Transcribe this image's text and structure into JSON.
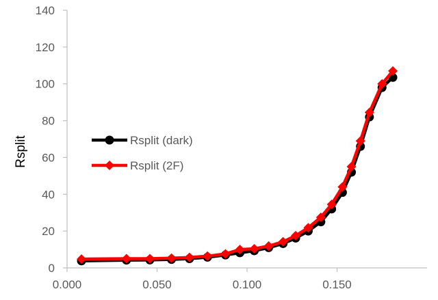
{
  "chart_data": {
    "type": "line",
    "title": "",
    "xlabel": "",
    "ylabel": "Rsplit",
    "xlim": [
      0.0,
      0.2
    ],
    "ylim": [
      0,
      140
    ],
    "x_ticks": [
      0.0,
      0.05,
      0.1,
      0.15
    ],
    "x_tick_labels": [
      "0.000",
      "0.050",
      "0.100",
      "0.150"
    ],
    "y_ticks": [
      0,
      20,
      40,
      60,
      80,
      100,
      120,
      140
    ],
    "y_tick_labels": [
      "0",
      "20",
      "40",
      "60",
      "80",
      "100",
      "120",
      "140"
    ],
    "grid": false,
    "legend_position": "left-center",
    "series": [
      {
        "name": "Rsplit (dark)",
        "color": "#000000",
        "marker": "circle",
        "x": [
          0.008,
          0.033,
          0.046,
          0.058,
          0.068,
          0.078,
          0.088,
          0.096,
          0.104,
          0.112,
          0.12,
          0.127,
          0.134,
          0.141,
          0.147,
          0.153,
          0.158,
          0.163,
          0.168,
          0.175,
          0.181
        ],
        "y": [
          3.8,
          4.2,
          4.3,
          4.6,
          5.0,
          5.8,
          7.0,
          8.2,
          9.3,
          11.0,
          13.2,
          16.2,
          20.0,
          25.0,
          32.0,
          41.0,
          52.0,
          66.0,
          82.0,
          98.0,
          103.5
        ]
      },
      {
        "name": "Rsplit (2F)",
        "color": "#ff0000",
        "marker": "diamond",
        "x": [
          0.008,
          0.033,
          0.046,
          0.058,
          0.068,
          0.078,
          0.088,
          0.096,
          0.104,
          0.112,
          0.12,
          0.127,
          0.134,
          0.141,
          0.147,
          0.153,
          0.158,
          0.163,
          0.168,
          0.175,
          0.181
        ],
        "y": [
          4.8,
          5.0,
          5.0,
          5.3,
          5.7,
          6.4,
          7.6,
          10.0,
          10.4,
          11.9,
          14.2,
          17.5,
          21.8,
          27.5,
          34.5,
          44.0,
          55.0,
          69.0,
          84.5,
          100.0,
          107.0
        ]
      }
    ]
  }
}
